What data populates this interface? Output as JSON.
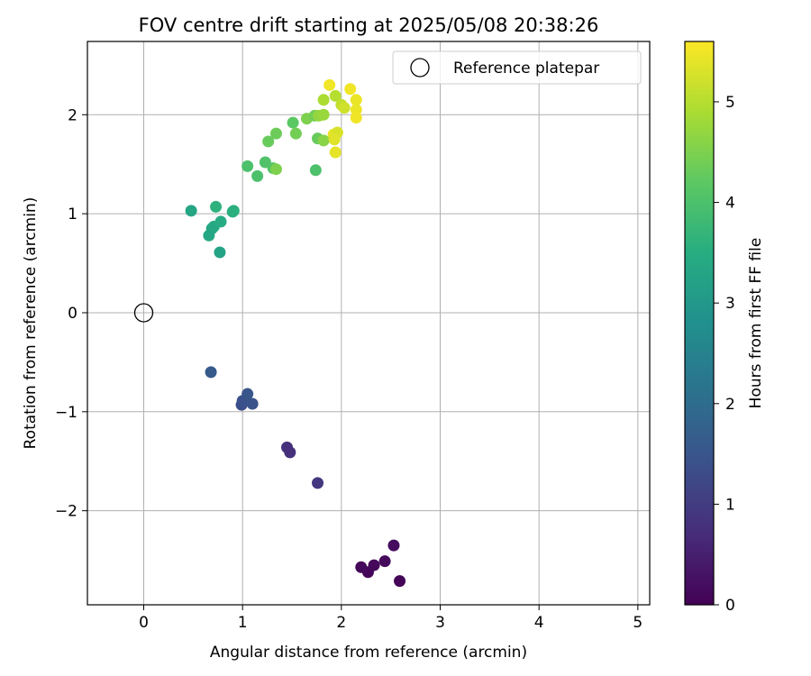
{
  "chart_data": {
    "type": "scatter",
    "title": "FOV centre drift starting at 2025/05/08 20:38:26",
    "xlabel": "Angular distance from reference (arcmin)",
    "ylabel": "Rotation from reference (arcmin)",
    "colorbar_label": "Hours from first FF file",
    "xlim": [
      -0.57,
      5.12
    ],
    "ylim": [
      -2.95,
      2.74
    ],
    "xticks": [
      0,
      1,
      2,
      3,
      4,
      5
    ],
    "xtick_labels": [
      "0",
      "1",
      "2",
      "3",
      "4",
      "5"
    ],
    "yticks": [
      -2,
      -1,
      0,
      1,
      2
    ],
    "ytick_labels": [
      "−2",
      "−1",
      "0",
      "1",
      "2"
    ],
    "clim": [
      0,
      5.6
    ],
    "cticks": [
      0,
      1,
      2,
      3,
      4,
      5
    ],
    "ctick_labels": [
      "0",
      "1",
      "2",
      "3",
      "4",
      "5"
    ],
    "colormap": "viridis",
    "grid": true,
    "legend": {
      "position": "top-right",
      "entries": [
        "Reference platepar"
      ]
    },
    "reference_point": {
      "x": 0,
      "y": 0,
      "label": "Reference platepar"
    },
    "points": [
      {
        "x": 2.59,
        "y": -2.71,
        "hours": 0.05
      },
      {
        "x": 2.27,
        "y": -2.62,
        "hours": 0.08
      },
      {
        "x": 2.2,
        "y": -2.57,
        "hours": 0.1
      },
      {
        "x": 2.33,
        "y": -2.55,
        "hours": 0.12
      },
      {
        "x": 2.44,
        "y": -2.51,
        "hours": 0.15
      },
      {
        "x": 2.53,
        "y": -2.35,
        "hours": 0.18
      },
      {
        "x": 1.76,
        "y": -1.72,
        "hours": 0.9
      },
      {
        "x": 1.48,
        "y": -1.41,
        "hours": 0.8
      },
      {
        "x": 1.45,
        "y": -1.36,
        "hours": 0.75
      },
      {
        "x": 0.99,
        "y": -0.93,
        "hours": 1.35
      },
      {
        "x": 1.0,
        "y": -0.89,
        "hours": 1.4
      },
      {
        "x": 1.1,
        "y": -0.92,
        "hours": 1.45
      },
      {
        "x": 1.05,
        "y": -0.82,
        "hours": 1.5
      },
      {
        "x": 0.68,
        "y": -0.6,
        "hours": 1.6
      },
      {
        "x": 0.77,
        "y": 0.61,
        "hours": 3.25
      },
      {
        "x": 0.66,
        "y": 0.78,
        "hours": 3.35
      },
      {
        "x": 0.69,
        "y": 0.85,
        "hours": 3.3
      },
      {
        "x": 0.71,
        "y": 0.87,
        "hours": 3.4
      },
      {
        "x": 0.78,
        "y": 0.92,
        "hours": 3.45
      },
      {
        "x": 0.9,
        "y": 1.02,
        "hours": 3.5
      },
      {
        "x": 0.91,
        "y": 1.03,
        "hours": 3.55
      },
      {
        "x": 0.48,
        "y": 1.03,
        "hours": 3.3
      },
      {
        "x": 0.73,
        "y": 1.07,
        "hours": 3.6
      },
      {
        "x": 1.15,
        "y": 1.38,
        "hours": 4.0
      },
      {
        "x": 1.05,
        "y": 1.48,
        "hours": 4.0
      },
      {
        "x": 1.23,
        "y": 1.52,
        "hours": 4.05
      },
      {
        "x": 1.31,
        "y": 1.46,
        "hours": 4.1
      },
      {
        "x": 1.34,
        "y": 1.45,
        "hours": 4.5
      },
      {
        "x": 1.74,
        "y": 1.44,
        "hours": 4.0
      },
      {
        "x": 1.26,
        "y": 1.73,
        "hours": 4.3
      },
      {
        "x": 1.34,
        "y": 1.81,
        "hours": 4.35
      },
      {
        "x": 1.51,
        "y": 1.92,
        "hours": 4.2
      },
      {
        "x": 1.54,
        "y": 1.81,
        "hours": 4.4
      },
      {
        "x": 1.76,
        "y": 1.76,
        "hours": 4.3
      },
      {
        "x": 1.82,
        "y": 1.74,
        "hours": 4.6
      },
      {
        "x": 1.65,
        "y": 1.96,
        "hours": 4.5
      },
      {
        "x": 1.73,
        "y": 1.99,
        "hours": 4.4
      },
      {
        "x": 1.77,
        "y": 1.99,
        "hours": 4.7
      },
      {
        "x": 1.82,
        "y": 2.0,
        "hours": 4.75
      },
      {
        "x": 1.92,
        "y": 1.8,
        "hours": 5.4
      },
      {
        "x": 1.96,
        "y": 1.82,
        "hours": 5.3
      },
      {
        "x": 1.93,
        "y": 1.75,
        "hours": 5.35
      },
      {
        "x": 1.94,
        "y": 1.62,
        "hours": 5.4
      },
      {
        "x": 1.82,
        "y": 2.15,
        "hours": 4.9
      },
      {
        "x": 1.94,
        "y": 2.19,
        "hours": 5.0
      },
      {
        "x": 2.0,
        "y": 2.1,
        "hours": 5.1
      },
      {
        "x": 2.03,
        "y": 2.07,
        "hours": 5.2
      },
      {
        "x": 1.88,
        "y": 2.3,
        "hours": 5.5
      },
      {
        "x": 2.09,
        "y": 2.26,
        "hours": 5.5
      },
      {
        "x": 2.15,
        "y": 2.15,
        "hours": 5.45
      },
      {
        "x": 2.15,
        "y": 2.05,
        "hours": 5.45
      },
      {
        "x": 2.15,
        "y": 1.97,
        "hours": 5.5
      }
    ]
  }
}
